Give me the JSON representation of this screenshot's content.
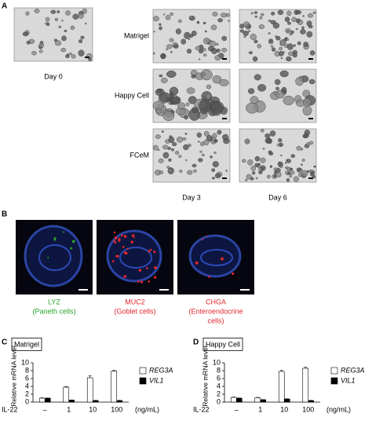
{
  "panel_a": {
    "label": "A",
    "day0": "Day 0",
    "rows": [
      "Matrigel",
      "Happy Cell",
      "FCeM"
    ],
    "columns": [
      "Day 3",
      "Day 6"
    ]
  },
  "panel_b": {
    "label": "B",
    "stains": [
      {
        "name": "LYZ",
        "cells": [
          "(Paneth cells)"
        ],
        "color": "#2aa52a"
      },
      {
        "name": "MUC2",
        "cells": [
          "(Goblet cells)"
        ],
        "color": "#e3262b"
      },
      {
        "name": "CHGA",
        "cells": [
          "(Enteroendocrine",
          "cells)"
        ],
        "color": "#e3262b"
      }
    ]
  },
  "chart_data": [
    {
      "type": "bar",
      "panel": "C",
      "title": "Matrigel",
      "y_label": "Relative mRNA level",
      "x_label": "IL-22",
      "x_unit": "(ng/mL)",
      "categories": [
        "–",
        "1",
        "10",
        "100"
      ],
      "ylim": [
        0,
        10
      ],
      "yticks": [
        0,
        2,
        4,
        6,
        8,
        10
      ],
      "series": [
        {
          "name": "REG3A",
          "color": "#ffffff",
          "values": [
            1.0,
            3.8,
            6.2,
            7.9
          ],
          "errors": [
            0.1,
            0.15,
            0.5,
            0.2
          ]
        },
        {
          "name": "VIL1",
          "color": "#000000",
          "values": [
            1.0,
            0.5,
            0.4,
            0.4
          ],
          "errors": [
            0.05,
            0.05,
            0.05,
            0.05
          ]
        }
      ]
    },
    {
      "type": "bar",
      "panel": "D",
      "title": "Happy Cell",
      "y_label": "Relative mRNA level",
      "x_label": "IL-22",
      "x_unit": "(ng/mL)",
      "categories": [
        "–",
        "1",
        "10",
        "100"
      ],
      "ylim": [
        0,
        10
      ],
      "yticks": [
        0,
        2,
        4,
        6,
        8,
        10
      ],
      "series": [
        {
          "name": "REG3A",
          "color": "#ffffff",
          "values": [
            1.2,
            1.1,
            7.8,
            8.6
          ],
          "errors": [
            0.1,
            0.1,
            0.3,
            0.3
          ]
        },
        {
          "name": "VIL1",
          "color": "#000000",
          "values": [
            1.0,
            0.6,
            0.8,
            0.4
          ],
          "errors": [
            0.05,
            0.05,
            0.05,
            0.05
          ]
        }
      ]
    }
  ]
}
